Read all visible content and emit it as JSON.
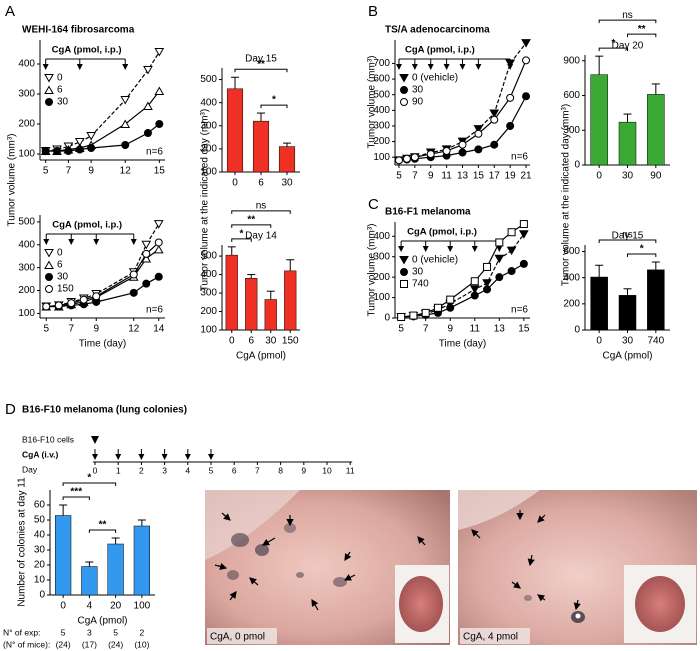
{
  "panels": [
    "A",
    "B",
    "C",
    "D"
  ],
  "chart_data": [
    {
      "type": "line",
      "title": "WEHI-164 fibrosarcoma",
      "annotation": "CgA (pmol, i.p.)",
      "injection_days": [
        5,
        8,
        12
      ],
      "y_label": "Tumor volume (mm³)",
      "note": "n=6",
      "x": [
        5,
        6,
        7,
        8,
        9,
        12,
        14,
        15
      ],
      "xlim": [
        4.5,
        15.5
      ],
      "xticks": [
        5,
        7,
        9,
        12,
        15
      ],
      "ylim": [
        80,
        480
      ],
      "yticks": [
        100,
        200,
        300,
        400
      ],
      "legend": "upper left",
      "series": [
        {
          "name": "0",
          "marker": "tri-down-open",
          "dash": true,
          "values": [
            110,
            115,
            125,
            140,
            160,
            280,
            380,
            440
          ]
        },
        {
          "name": "6",
          "marker": "tri-up-open",
          "dash": false,
          "values": [
            110,
            110,
            115,
            120,
            130,
            200,
            260,
            310
          ]
        },
        {
          "name": "30",
          "marker": "circle-filled",
          "dash": false,
          "values": [
            110,
            110,
            110,
            115,
            120,
            130,
            170,
            200
          ]
        }
      ]
    },
    {
      "type": "bar",
      "title": "Day 15",
      "categories": [
        "0",
        "6",
        "30"
      ],
      "values": [
        460,
        320,
        210
      ],
      "errors": [
        50,
        35,
        15
      ],
      "color": "#ee3124",
      "ylim": [
        100,
        550
      ],
      "yticks": [
        100,
        200,
        300,
        400,
        500
      ],
      "y_label": "Tumor volume at the indicated day (mm³)",
      "significance": [
        {
          "from": 1,
          "to": 2,
          "label": "*"
        },
        {
          "from": 0,
          "to": 2,
          "label": "**"
        }
      ]
    },
    {
      "type": "line",
      "annotation": "CgA (pmol, i.p.)",
      "injection_days": [
        5,
        7,
        9,
        12
      ],
      "note": "n=6",
      "x_label": "Time (day)",
      "x": [
        5,
        6,
        7,
        8,
        9,
        12,
        13,
        14
      ],
      "xlim": [
        4.5,
        14.5
      ],
      "xticks": [
        5,
        7,
        9,
        12,
        14
      ],
      "ylim": [
        80,
        530
      ],
      "yticks": [
        100,
        200,
        300,
        400,
        500
      ],
      "legend": "upper left",
      "series": [
        {
          "name": "0",
          "marker": "tri-down-open",
          "dash": true,
          "values": [
            130,
            135,
            150,
            165,
            185,
            280,
            400,
            490
          ]
        },
        {
          "name": "6",
          "marker": "tri-up-open",
          "dash": false,
          "values": [
            130,
            130,
            140,
            150,
            170,
            260,
            340,
            380
          ]
        },
        {
          "name": "30",
          "marker": "circle-filled",
          "dash": false,
          "values": [
            130,
            130,
            135,
            140,
            150,
            190,
            230,
            260
          ]
        },
        {
          "name": "150",
          "marker": "circle-open",
          "dash": false,
          "values": [
            130,
            135,
            145,
            160,
            175,
            270,
            360,
            410
          ]
        }
      ]
    },
    {
      "type": "bar",
      "title": "Day 14",
      "categories": [
        "0",
        "6",
        "30",
        "150"
      ],
      "values": [
        505,
        380,
        265,
        420
      ],
      "errors": [
        45,
        20,
        45,
        60
      ],
      "color": "#ee3124",
      "ylim": [
        100,
        560
      ],
      "yticks": [
        100,
        200,
        300,
        400,
        500
      ],
      "x_label": "CgA (pmol)",
      "significance": [
        {
          "from": 0,
          "to": 1,
          "label": "*"
        },
        {
          "from": 0,
          "to": 2,
          "label": "**"
        },
        {
          "from": 0,
          "to": 3,
          "label": "ns"
        }
      ]
    },
    {
      "type": "line",
      "title": "TS/A adenocarcinoma",
      "annotation": "CgA (pmol, i.p.)",
      "injection_days": [
        5,
        7,
        9,
        11,
        13,
        15,
        19
      ],
      "y_label": "Tumor volume (mm³)",
      "note": "n=6",
      "x": [
        5,
        6,
        7,
        9,
        11,
        13,
        15,
        17,
        19,
        21
      ],
      "xlim": [
        4.5,
        21.5
      ],
      "xticks": [
        5,
        7,
        9,
        11,
        13,
        15,
        17,
        19,
        21
      ],
      "ylim": [
        50,
        850
      ],
      "yticks": [
        100,
        200,
        300,
        400,
        500,
        600,
        700
      ],
      "legend": "upper left",
      "series": [
        {
          "name": "0 (vehicle)",
          "marker": "tri-down-filled",
          "dash": true,
          "values": [
            80,
            90,
            100,
            130,
            150,
            200,
            280,
            380,
            700,
            830
          ]
        },
        {
          "name": "30",
          "marker": "circle-filled",
          "dash": false,
          "values": [
            80,
            85,
            90,
            100,
            110,
            130,
            150,
            180,
            300,
            490
          ]
        },
        {
          "name": "90",
          "marker": "circle-open",
          "dash": false,
          "values": [
            80,
            90,
            100,
            120,
            140,
            180,
            250,
            340,
            480,
            720
          ]
        }
      ]
    },
    {
      "type": "bar",
      "title": "Day 20",
      "categories": [
        "0",
        "30",
        "90"
      ],
      "values": [
        780,
        370,
        610
      ],
      "errors": [
        160,
        70,
        90
      ],
      "color": "#3aaa35",
      "ylim": [
        0,
        950
      ],
      "yticks": [
        0,
        300,
        600,
        900
      ],
      "y_label": "Tumor volume at the indicated day (mm³)",
      "significance": [
        {
          "from": 0,
          "to": 1,
          "label": "*"
        },
        {
          "from": 1,
          "to": 2,
          "label": "**"
        },
        {
          "from": 0,
          "to": 2,
          "label": "ns"
        }
      ]
    },
    {
      "type": "line",
      "title": "B16-F1 melanoma",
      "annotation": "CgA (pmol, i.p.)",
      "injection_days": [
        5,
        7,
        9,
        11,
        13
      ],
      "y_label": "Tumor volume (mm³)",
      "note": "n=6",
      "x_label": "Time (day)",
      "x": [
        5,
        6,
        7,
        8,
        9,
        11,
        12,
        13,
        14,
        15
      ],
      "xlim": [
        4.5,
        15.5
      ],
      "xticks": [
        5,
        7,
        9,
        11,
        13,
        15
      ],
      "ylim": [
        0,
        470
      ],
      "yticks": [
        0,
        100,
        200,
        300,
        400
      ],
      "legend": "upper left",
      "series": [
        {
          "name": "0 (vehicle)",
          "marker": "tri-down-filled",
          "dash": true,
          "values": [
            5,
            10,
            20,
            40,
            70,
            140,
            170,
            290,
            330,
            410
          ]
        },
        {
          "name": "30",
          "marker": "circle-filled",
          "dash": false,
          "values": [
            5,
            8,
            15,
            25,
            50,
            110,
            140,
            200,
            230,
            265
          ]
        },
        {
          "name": "740",
          "marker": "square-open",
          "dash": false,
          "values": [
            5,
            12,
            25,
            50,
            90,
            180,
            250,
            370,
            420,
            460
          ]
        }
      ]
    },
    {
      "type": "bar",
      "title": "Day 15",
      "categories": [
        "0",
        "30",
        "740"
      ],
      "values": [
        405,
        265,
        460
      ],
      "errors": [
        90,
        50,
        60
      ],
      "color": "#000000",
      "ylim": [
        0,
        650
      ],
      "yticks": [
        0,
        200,
        400,
        600
      ],
      "x_label": "CgA (pmol)",
      "significance": [
        {
          "from": 1,
          "to": 2,
          "label": "*"
        },
        {
          "from": 0,
          "to": 2,
          "label": "ns"
        }
      ]
    },
    {
      "type": "bar",
      "categories": [
        "0",
        "4",
        "20",
        "100"
      ],
      "values": [
        53,
        19,
        34,
        46
      ],
      "errors": [
        7,
        3,
        4,
        4
      ],
      "color": "#3399ee",
      "ylim": [
        0,
        70
      ],
      "yticks": [
        0,
        10,
        20,
        30,
        40,
        50,
        60
      ],
      "y_label": "Number of colonies at day 11",
      "x_label": "CgA (pmol)",
      "significance": [
        {
          "from": 1,
          "to": 2,
          "label": "**"
        },
        {
          "from": 0,
          "to": 1,
          "label": "***"
        },
        {
          "from": 0,
          "to": 2,
          "label": "*"
        }
      ]
    }
  ],
  "panel_d_title": "B16-F10 melanoma (lung colonies)",
  "timeline": {
    "cells_label": "B16-F10 cells",
    "cga_label": "CgA (i.v.)",
    "day_label": "Day",
    "days": [
      0,
      1,
      2,
      3,
      4,
      5,
      6,
      7,
      8,
      9,
      10,
      11
    ],
    "cells_day": 0,
    "cga_days": [
      0,
      1,
      2,
      3,
      4,
      5
    ]
  },
  "table": {
    "rows": [
      [
        "N° of exp:",
        "5",
        "3",
        "5",
        "2"
      ],
      [
        "(N° of mice):",
        "(24)",
        "(17)",
        "(24)",
        "(10)"
      ]
    ]
  },
  "photos": [
    {
      "caption": "CgA, 0 pmol"
    },
    {
      "caption": "CgA, 4 pmol"
    }
  ]
}
